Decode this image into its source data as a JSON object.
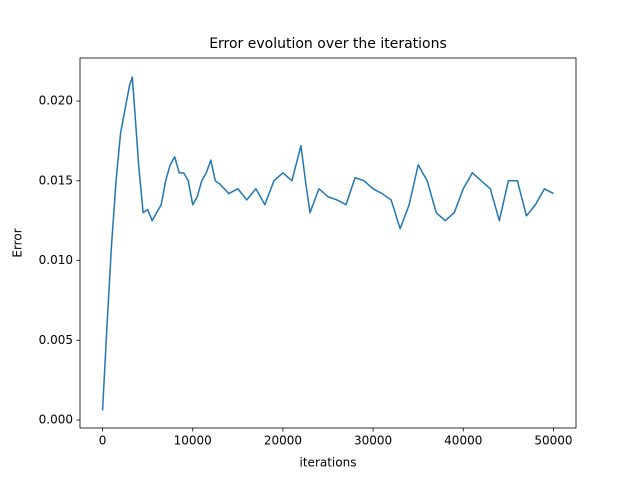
{
  "chart_data": {
    "type": "line",
    "title": "Error evolution over the iterations",
    "x_label": "iterations",
    "y_label": "Error",
    "x": [
      0,
      500,
      1000,
      1500,
      2000,
      2500,
      3000,
      3300,
      3500,
      4000,
      4500,
      5000,
      5500,
      6000,
      6500,
      7000,
      7500,
      8000,
      8500,
      9000,
      9500,
      10000,
      10500,
      11000,
      11500,
      12000,
      12500,
      13000,
      13500,
      14000,
      15000,
      16000,
      17000,
      18000,
      19000,
      20000,
      21000,
      22000,
      22500,
      23000,
      24000,
      25000,
      26000,
      27000,
      28000,
      29000,
      30000,
      31000,
      32000,
      33000,
      34000,
      35000,
      36000,
      37000,
      38000,
      39000,
      40000,
      41000,
      42000,
      43000,
      44000,
      45000,
      46000,
      47000,
      48000,
      49000,
      50000
    ],
    "series": [
      {
        "name": "Error",
        "color": "#1f77b4",
        "values": [
          0.0006,
          0.006,
          0.011,
          0.015,
          0.018,
          0.0195,
          0.021,
          0.0215,
          0.02,
          0.016,
          0.013,
          0.0132,
          0.0125,
          0.013,
          0.0135,
          0.015,
          0.016,
          0.0165,
          0.0155,
          0.0155,
          0.015,
          0.0135,
          0.014,
          0.015,
          0.0155,
          0.0163,
          0.015,
          0.0148,
          0.0145,
          0.0142,
          0.0145,
          0.0138,
          0.0145,
          0.0135,
          0.015,
          0.0155,
          0.015,
          0.0172,
          0.015,
          0.013,
          0.0145,
          0.014,
          0.0138,
          0.0135,
          0.0152,
          0.015,
          0.0145,
          0.0142,
          0.0138,
          0.012,
          0.0135,
          0.016,
          0.015,
          0.013,
          0.0125,
          0.013,
          0.0145,
          0.0155,
          0.015,
          0.0145,
          0.0125,
          0.015,
          0.015,
          0.0128,
          0.0135,
          0.0145,
          0.0142
        ]
      }
    ],
    "xlim": [
      -2500,
      52500
    ],
    "xticks": [
      0,
      10000,
      20000,
      30000,
      40000,
      50000
    ],
    "ylim": [
      -0.0005,
      0.0227
    ],
    "yticks": [
      {
        "value": 0,
        "label": "0.000"
      },
      {
        "value": 0.005,
        "label": "0.005"
      },
      {
        "value": 0.01,
        "label": "0.010"
      },
      {
        "value": 0.015,
        "label": "0.015"
      },
      {
        "value": 0.02,
        "label": "0.020"
      }
    ],
    "grid": false
  }
}
